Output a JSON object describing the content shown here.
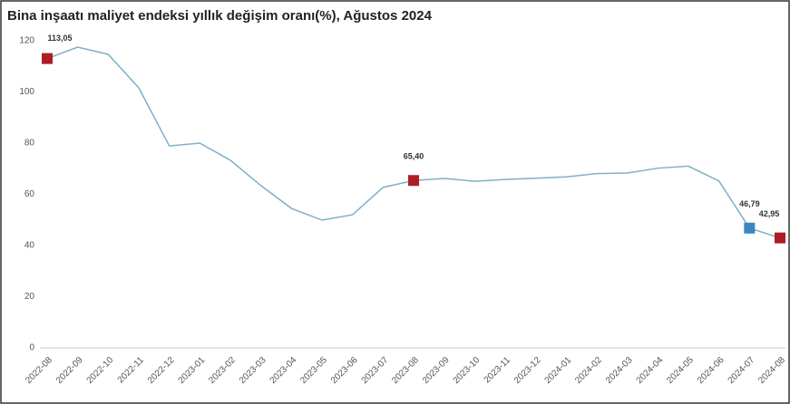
{
  "chart_data": {
    "type": "line",
    "title": "Bina inşaatı maliyet endeksi yıllık değişim oranı(%), Ağustos 2024",
    "categories": [
      "2022-08",
      "2022-09",
      "2022-10",
      "2022-11",
      "2022-12",
      "2023-01",
      "2023-02",
      "2023-03",
      "2023-04",
      "2023-05",
      "2023-06",
      "2023-07",
      "2023-08",
      "2023-09",
      "2023-10",
      "2023-11",
      "2023-12",
      "2024-01",
      "2024-02",
      "2024-03",
      "2024-04",
      "2024-05",
      "2024-06",
      "2024-07",
      "2024-08"
    ],
    "series": [
      {
        "color": "#7fb0c8",
        "values": [
          113.05,
          117.5,
          114.7,
          101.6,
          78.9,
          80,
          73.3,
          63.4,
          54.5,
          49.9,
          52,
          62.7,
          65.4,
          66.2,
          65.1,
          65.8,
          66.3,
          66.8,
          68.1,
          68.3,
          70.2,
          71.0,
          65.2,
          46.79,
          42.95
        ],
        "value_labels": [
          "113,05",
          null,
          null,
          null,
          null,
          null,
          null,
          null,
          null,
          null,
          null,
          null,
          "65,40",
          null,
          null,
          null,
          null,
          null,
          null,
          null,
          null,
          null,
          null,
          "46,79",
          "42,95"
        ],
        "marker_colors": [
          "#b01c24",
          null,
          null,
          null,
          null,
          null,
          null,
          null,
          null,
          null,
          null,
          null,
          "#b01c24",
          null,
          null,
          null,
          null,
          null,
          null,
          null,
          null,
          null,
          null,
          "#3b86c0",
          "#b01c24"
        ]
      }
    ],
    "ylim": [
      0,
      120
    ],
    "yticks": [
      0,
      20,
      40,
      60,
      80,
      100,
      120
    ],
    "grid": false
  }
}
